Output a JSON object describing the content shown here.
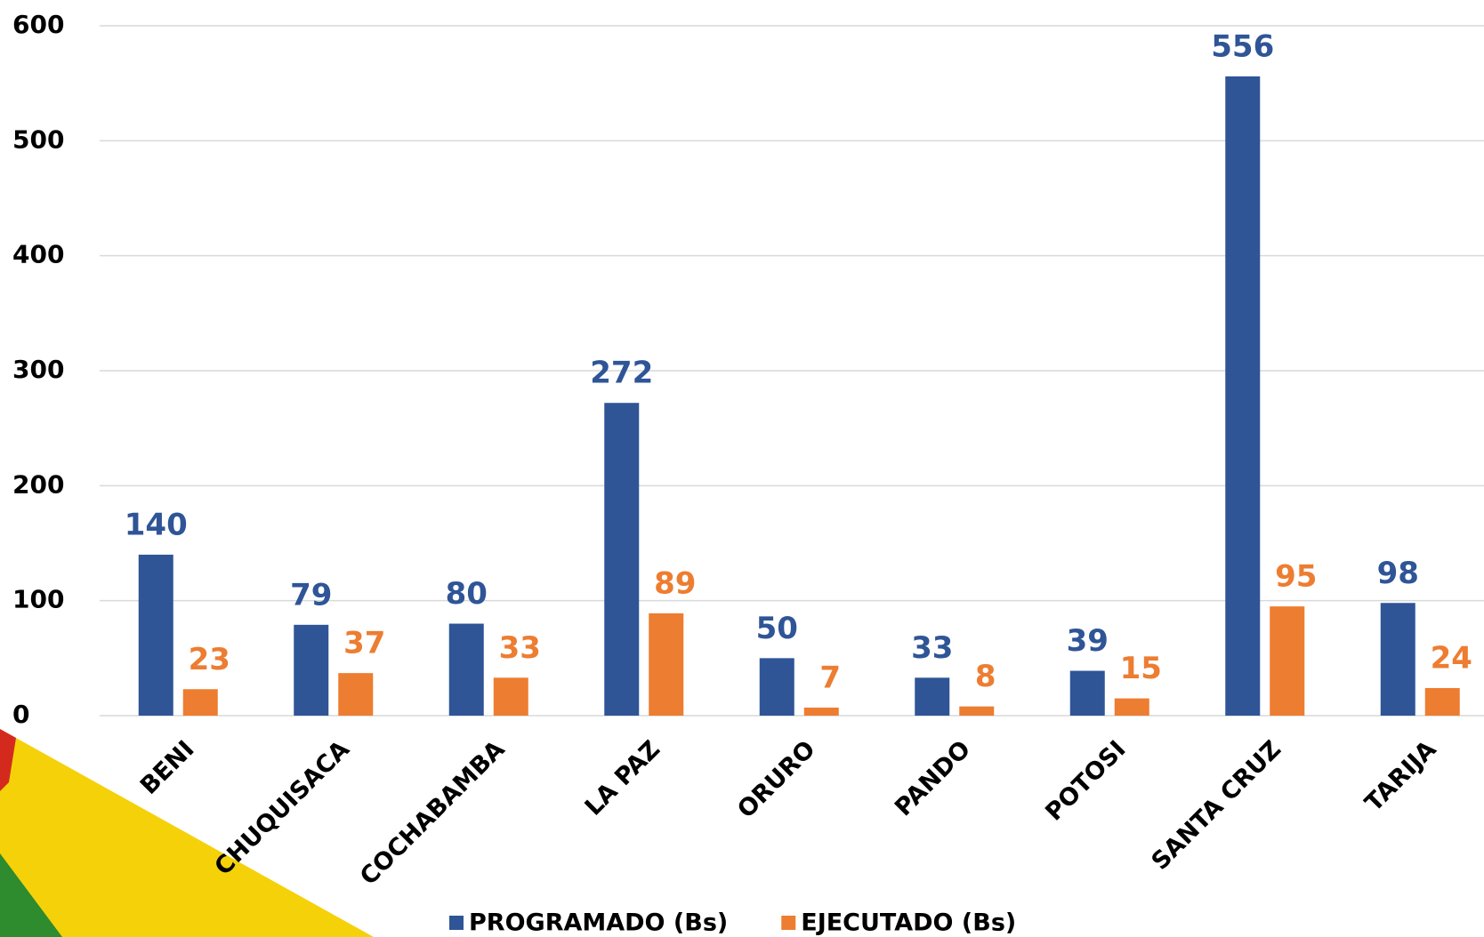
{
  "chart_data": {
    "type": "bar",
    "categories": [
      "BENI",
      "CHUQUISACA",
      "COCHABAMBA",
      "LA PAZ",
      "ORURO",
      "PANDO",
      "POTOSI",
      "SANTA CRUZ",
      "TARIJA"
    ],
    "series": [
      {
        "name": "PROGRAMADO (Bs)",
        "color": "#2f5597",
        "values": [
          140,
          79,
          80,
          272,
          50,
          33,
          39,
          556,
          98
        ]
      },
      {
        "name": "EJECUTADO (Bs)",
        "color": "#ed7d31",
        "values": [
          23,
          37,
          33,
          89,
          7,
          8,
          15,
          95,
          24
        ]
      }
    ],
    "ylim": [
      0,
      600
    ],
    "yticks": [
      0,
      100,
      200,
      300,
      400,
      500,
      600
    ],
    "grid": true,
    "legend": "bottom"
  }
}
